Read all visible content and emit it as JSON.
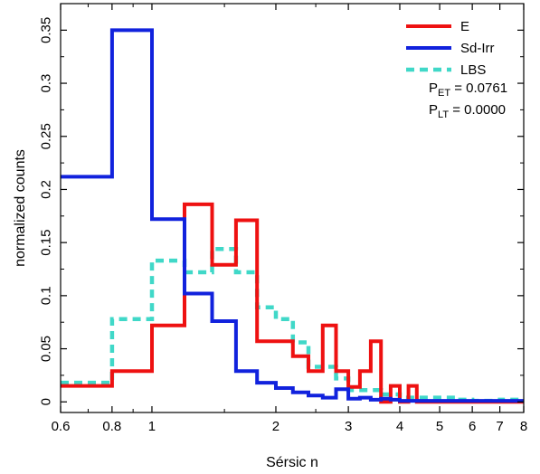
{
  "chart_data": {
    "type": "line",
    "step": true,
    "xlabel": "Sérsic n",
    "ylabel": "normalized counts",
    "xscale": "log",
    "xlim": [
      0.6,
      8
    ],
    "ylim": [
      -0.01,
      0.375
    ],
    "xticks": [
      0.6,
      0.8,
      1,
      2,
      3,
      4,
      5,
      6,
      7,
      8
    ],
    "xtick_labels": [
      "0.6",
      "0.8",
      "1",
      "2",
      "3",
      "4",
      "5",
      "6",
      "7",
      "8"
    ],
    "yticks": [
      0,
      0.05,
      0.1,
      0.15,
      0.2,
      0.25,
      0.3,
      0.35
    ],
    "ytick_labels": [
      "0",
      "0.05",
      "0.1",
      "0.15",
      "0.2",
      "0.25",
      "0.3",
      "0.35"
    ],
    "legend_position": "top-right",
    "annotations": [
      {
        "main": "P",
        "sub": "ET",
        "rest": " = 0.0761"
      },
      {
        "main": "P",
        "sub": "LT",
        "rest": " = 0.0000"
      }
    ],
    "series": [
      {
        "name": "E",
        "color": "#ee1111",
        "style": "solid",
        "edges": [
          0.6,
          0.8,
          1.0,
          1.2,
          1.4,
          1.6,
          1.8,
          2.0,
          2.2,
          2.4,
          2.6,
          2.8,
          3.0,
          3.2,
          3.4,
          3.6,
          3.8,
          4.0,
          4.2,
          4.4,
          4.6,
          8.0
        ],
        "values": [
          0.015,
          0.029,
          0.072,
          0.186,
          0.129,
          0.171,
          0.057,
          0.057,
          0.043,
          0.029,
          0.072,
          0.029,
          0.014,
          0.029,
          0.057,
          0.0,
          0.015,
          0.0,
          0.015,
          0.0,
          0.0
        ]
      },
      {
        "name": "Sd-Irr",
        "color": "#1122dd",
        "style": "solid",
        "edges": [
          0.6,
          0.8,
          1.0,
          1.2,
          1.4,
          1.6,
          1.8,
          2.0,
          2.2,
          2.4,
          2.6,
          2.8,
          3.0,
          3.2,
          3.4,
          3.6,
          3.8,
          4.0,
          8.0
        ],
        "values": [
          0.212,
          0.35,
          0.172,
          0.102,
          0.076,
          0.029,
          0.018,
          0.013,
          0.009,
          0.006,
          0.004,
          0.012,
          0.003,
          0.004,
          0.002,
          0.003,
          0.002,
          0.001
        ]
      },
      {
        "name": "LBS",
        "color": "#40d8c8",
        "style": "dashed",
        "edges": [
          0.6,
          0.7,
          0.8,
          0.9,
          1.0,
          1.2,
          1.4,
          1.6,
          1.8,
          2.0,
          2.2,
          2.4,
          2.6,
          2.8,
          3.0,
          3.2,
          3.6,
          4.0,
          4.5,
          5.0,
          5.5,
          6.0,
          7.0,
          8.0
        ],
        "values": [
          0.018,
          0.018,
          0.078,
          0.078,
          0.133,
          0.122,
          0.144,
          0.122,
          0.089,
          0.078,
          0.056,
          0.033,
          0.033,
          0.022,
          0.011,
          0.011,
          0.007,
          0.004,
          0.004,
          0.004,
          0.002,
          0.001,
          0.002
        ]
      }
    ]
  }
}
